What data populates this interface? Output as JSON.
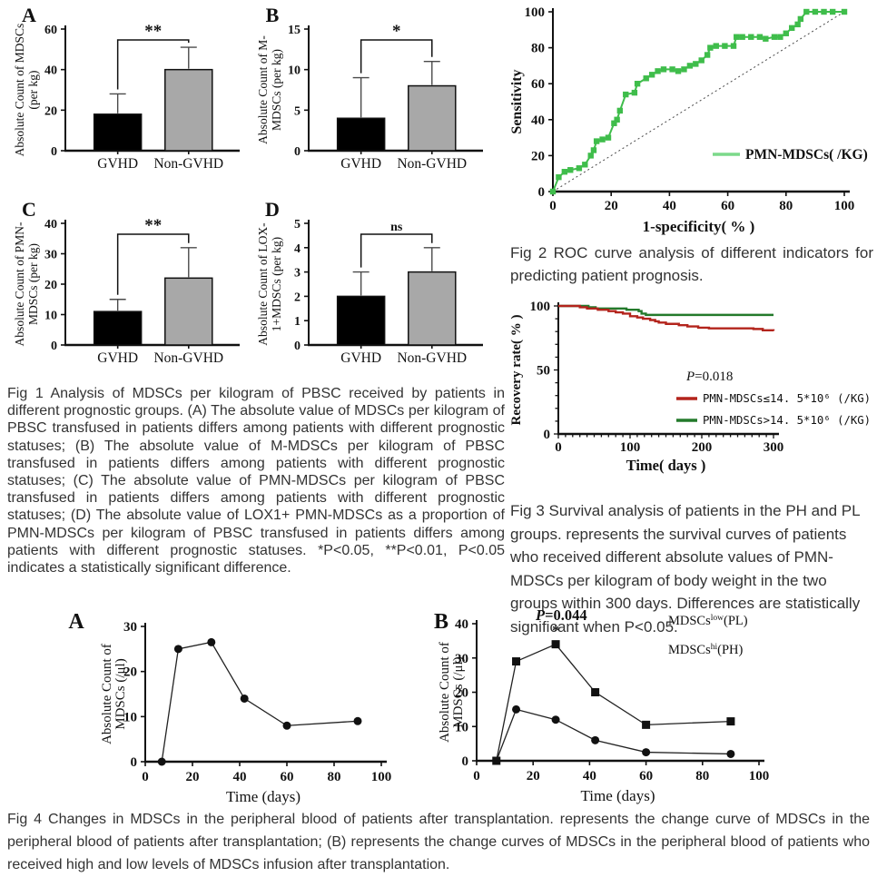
{
  "captions": {
    "fig1": "Fig 1 Analysis of MDSCs per kilogram of PBSC received by patients in different prognostic groups. (A) The absolute value of MDSCs per kilogram of PBSC transfused in patients differs among patients with different prognostic statuses; (B) The absolute value of M-MDSCs per kilogram of PBSC transfused in patients differs among patients with different prognostic statuses; (C) The absolute value of PMN-MDSCs per kilogram of PBSC transfused in patients differs among patients with different prognostic statuses; (D) The absolute value of LOX1+ PMN-MDSCs as a proportion of PMN-MDSCs per kilogram of PBSC transfused in patients differs among patients with different prognostic statuses. *P<0.05, **P<0.01, P<0.05 indicates a statistically significant difference.",
    "fig2": "Fig 2 ROC curve analysis of different indicators for predicting patient prognosis.",
    "fig3": "Fig 3 Survival analysis of patients in the PH and PL groups. represents the survival curves of patients who received different absolute values of PMN-MDSCs per kilogram of body weight in the two groups within 300 days. Differences are statistically significant when P<0.05.",
    "fig4": "Fig 4 Changes in MDSCs in the peripheral blood of patients after transplantation.  represents the change curve of MDSCs in the peripheral blood of patients after transplantation; (B) represents the change curves of MDSCs in the peripheral blood of patients who received high and low levels of MDSCs infusion after transplantation."
  },
  "chart_data": [
    {
      "id": "fig1a",
      "type": "bar",
      "panel": "A",
      "ylabel_lines": [
        "Absolute Count of MDSCs",
        "(per kg)"
      ],
      "categories": [
        "GVHD",
        "Non-GVHD"
      ],
      "values": [
        18,
        40
      ],
      "errors_top": [
        28,
        51
      ],
      "bar_colors": [
        "#000000",
        "#a8a8a8"
      ],
      "ylim": [
        0,
        60
      ],
      "yticks": [
        0,
        20,
        40,
        60
      ],
      "sig": "**"
    },
    {
      "id": "fig1b",
      "type": "bar",
      "panel": "B",
      "ylabel_lines": [
        "Absolute Count of M-",
        "MDSCs (per kg)"
      ],
      "categories": [
        "GVHD",
        "Non-GVHD"
      ],
      "values": [
        4,
        8
      ],
      "errors_top": [
        9,
        11
      ],
      "bar_colors": [
        "#000000",
        "#a8a8a8"
      ],
      "ylim": [
        0,
        15
      ],
      "yticks": [
        0,
        5,
        10,
        15
      ],
      "sig": "*"
    },
    {
      "id": "fig1c",
      "type": "bar",
      "panel": "C",
      "ylabel_lines": [
        "Absolute Count of PMN-",
        "MDSCs (per kg)"
      ],
      "categories": [
        "GVHD",
        "Non-GVHD"
      ],
      "values": [
        11,
        22
      ],
      "errors_top": [
        15,
        32
      ],
      "bar_colors": [
        "#000000",
        "#a8a8a8"
      ],
      "ylim": [
        0,
        40
      ],
      "yticks": [
        0,
        10,
        20,
        30,
        40
      ],
      "sig": "**"
    },
    {
      "id": "fig1d",
      "type": "bar",
      "panel": "D",
      "ylabel_lines": [
        "Absolute Count of LOX-",
        "1+MDSCs (per kg)"
      ],
      "categories": [
        "GVHD",
        "Non-GVHD"
      ],
      "values": [
        2,
        3
      ],
      "errors_top": [
        3,
        4
      ],
      "bar_colors": [
        "#000000",
        "#a8a8a8"
      ],
      "ylim": [
        0,
        5
      ],
      "yticks": [
        0,
        1,
        2,
        3,
        4,
        5
      ],
      "sig": "ns"
    },
    {
      "id": "roc",
      "type": "line",
      "title": "",
      "xlabel": "1-specificity( % )",
      "ylabel": "Sensitivity",
      "xlim": [
        0,
        100
      ],
      "ylim": [
        0,
        100
      ],
      "xticks": [
        0,
        20,
        40,
        60,
        80,
        100
      ],
      "yticks": [
        0,
        20,
        40,
        60,
        80,
        100
      ],
      "legend": "PMN-MDSCs( /KG)",
      "curve_color": "#3fbd4b",
      "legend_line_color": "#7cd98a",
      "diagonal": true,
      "points": [
        [
          0,
          0
        ],
        [
          2,
          8
        ],
        [
          4,
          11
        ],
        [
          6,
          12
        ],
        [
          9,
          13
        ],
        [
          11,
          15
        ],
        [
          13,
          20
        ],
        [
          14,
          23
        ],
        [
          15,
          28
        ],
        [
          17,
          29
        ],
        [
          19,
          30
        ],
        [
          21,
          38
        ],
        [
          22,
          40
        ],
        [
          23,
          45
        ],
        [
          25,
          54
        ],
        [
          28,
          55
        ],
        [
          29,
          60
        ],
        [
          32,
          63
        ],
        [
          34,
          65
        ],
        [
          36,
          67
        ],
        [
          38,
          68
        ],
        [
          41,
          68
        ],
        [
          43,
          67
        ],
        [
          45,
          68
        ],
        [
          47,
          70
        ],
        [
          49,
          71
        ],
        [
          51,
          73
        ],
        [
          53,
          76
        ],
        [
          54,
          80
        ],
        [
          56,
          81
        ],
        [
          59,
          81
        ],
        [
          62,
          81
        ],
        [
          63,
          86
        ],
        [
          65,
          86
        ],
        [
          68,
          86
        ],
        [
          71,
          86
        ],
        [
          73,
          85
        ],
        [
          76,
          86
        ],
        [
          78,
          86
        ],
        [
          80,
          88
        ],
        [
          82,
          91
        ],
        [
          84,
          93
        ],
        [
          85,
          96
        ],
        [
          87,
          100
        ],
        [
          90,
          100
        ],
        [
          93,
          100
        ],
        [
          96,
          100
        ],
        [
          100,
          100
        ]
      ]
    },
    {
      "id": "survival",
      "type": "area",
      "xlabel": "Time( days )",
      "ylabel": "Recovery rate( % )",
      "xlim": [
        0,
        300
      ],
      "ylim": [
        0,
        100
      ],
      "xticks": [
        0,
        100,
        200,
        300
      ],
      "yticks": [
        0,
        50,
        100
      ],
      "p_label": "P=0.018",
      "series": [
        {
          "name": "PMN-MDSCs≤14. 5*10⁶ (/KG)",
          "color": "#b3241c",
          "points": [
            [
              0,
              100
            ],
            [
              25,
              100
            ],
            [
              30,
              99
            ],
            [
              40,
              98
            ],
            [
              55,
              97
            ],
            [
              70,
              96
            ],
            [
              80,
              95
            ],
            [
              90,
              94
            ],
            [
              100,
              92
            ],
            [
              110,
              91
            ],
            [
              118,
              90
            ],
            [
              128,
              89
            ],
            [
              135,
              88
            ],
            [
              140,
              87
            ],
            [
              150,
              86
            ],
            [
              168,
              85
            ],
            [
              180,
              84
            ],
            [
              195,
              83
            ],
            [
              210,
              82.5
            ],
            [
              265,
              82.5
            ],
            [
              272,
              82
            ],
            [
              285,
              81
            ],
            [
              300,
              80.5
            ]
          ]
        },
        {
          "name": "PMN-MDSCs>14. 5*10⁶ (/KG)",
          "color": "#237a2b",
          "points": [
            [
              0,
              100
            ],
            [
              35,
              100
            ],
            [
              42,
              99
            ],
            [
              52,
              98
            ],
            [
              88,
              98
            ],
            [
              95,
              97
            ],
            [
              108,
              97
            ],
            [
              112,
              96
            ],
            [
              116,
              94
            ],
            [
              122,
              93
            ],
            [
              300,
              93
            ]
          ]
        }
      ]
    },
    {
      "id": "fig4a",
      "type": "line",
      "panel": "A",
      "ylabel_lines": [
        "Absolute Count of",
        "MDSCs (/μl)"
      ],
      "xlabel": "Time (days)",
      "xlim": [
        0,
        100
      ],
      "ylim": [
        0,
        30
      ],
      "xticks": [
        0,
        20,
        40,
        60,
        80,
        100
      ],
      "yticks": [
        0,
        10,
        20,
        30
      ],
      "series": [
        {
          "name": "",
          "marker": "circle",
          "x": [
            7,
            14,
            28,
            42,
            60,
            90
          ],
          "y": [
            0,
            25,
            26.5,
            14,
            8,
            9
          ]
        }
      ]
    },
    {
      "id": "fig4b",
      "type": "line",
      "panel": "B",
      "ylabel_lines": [
        "Absolute Count of",
        "MDSCs (/μl)"
      ],
      "xlabel": "Time (days)",
      "xlim": [
        0,
        100
      ],
      "ylim": [
        0,
        40
      ],
      "xticks": [
        0,
        20,
        40,
        60,
        80,
        100
      ],
      "yticks": [
        0,
        10,
        20,
        30,
        40
      ],
      "p_label": "P=0.044",
      "star": {
        "x": 28,
        "y": 34,
        "text": "*"
      },
      "legend": [
        {
          "base": "MDSCs",
          "sup": "low",
          "rest": "(PL)"
        },
        {
          "base": "MDSCs",
          "sup": "hi",
          "rest": "(PH)"
        }
      ],
      "series": [
        {
          "name": "MDSCs low (PL)",
          "marker": "square",
          "x": [
            7,
            14,
            28,
            42,
            60,
            90
          ],
          "y": [
            0,
            29,
            34,
            20,
            10.5,
            11.5
          ]
        },
        {
          "name": "MDSCs hi (PH)",
          "marker": "circle",
          "x": [
            7,
            14,
            28,
            42,
            60,
            90
          ],
          "y": [
            0,
            15,
            12,
            6,
            2.5,
            2
          ]
        }
      ]
    }
  ]
}
